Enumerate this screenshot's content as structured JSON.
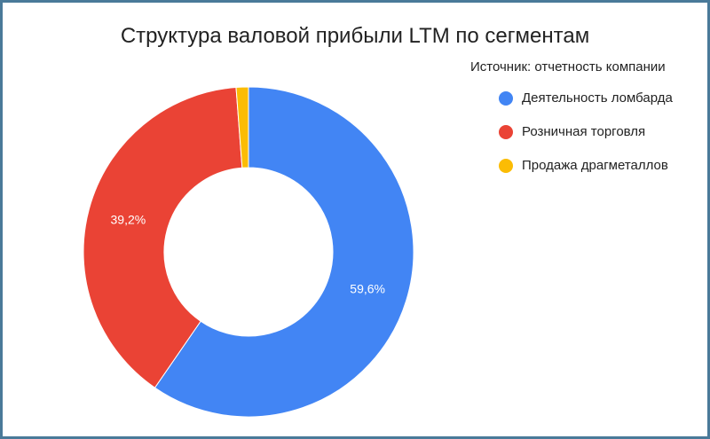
{
  "chart_data": {
    "type": "pie",
    "title": "Структура валовой прибыли LTM по сегментам",
    "subtitle": "Источник: отчетность компании",
    "legend_position": "right",
    "donut": true,
    "slices": [
      {
        "name": "Деятельность ломбарда",
        "value": 59.6,
        "label": "59,6%",
        "color": "#4285f4"
      },
      {
        "name": "Розничная торговля",
        "value": 39.2,
        "label": "39,2%",
        "color": "#ea4335"
      },
      {
        "name": "Продажа драгметаллов",
        "value": 1.2,
        "label": "",
        "color": "#fbbc04"
      }
    ]
  }
}
